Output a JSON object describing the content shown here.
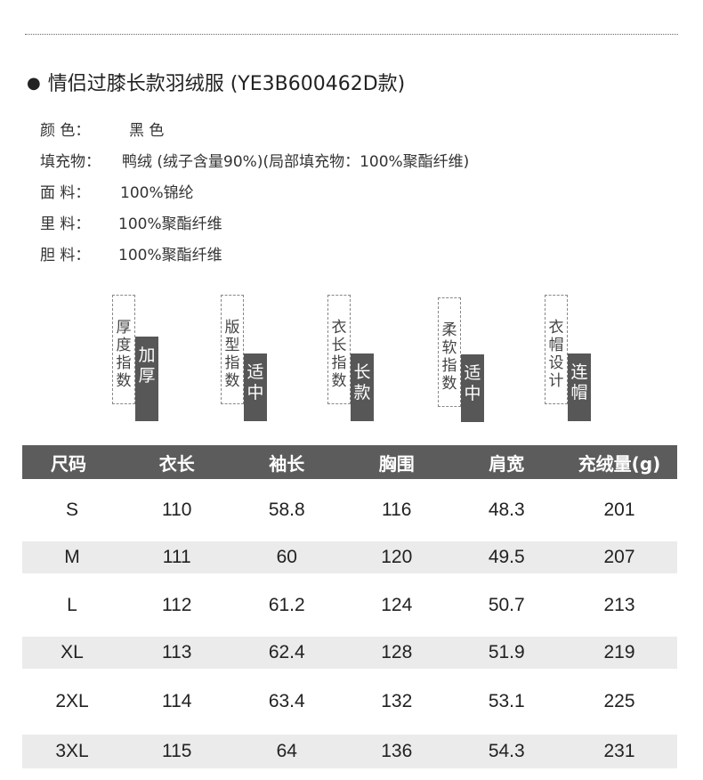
{
  "title": "情侣过膝长款羽绒服 (YE3B600462D款)",
  "specs": [
    {
      "label": "颜 色：",
      "value": "黑 色"
    },
    {
      "label": "填充物：",
      "value": "鸭绒 (绒子含量90%)(局部填充物：100%聚酯纤维)"
    },
    {
      "label": "面 料：",
      "value": "100%锦纶"
    },
    {
      "label": "里 料：",
      "value": "100%聚酯纤维"
    },
    {
      "label": "胆 料：",
      "value": "100%聚酯纤维"
    }
  ],
  "tags": [
    {
      "label": [
        "厚",
        "度",
        "指",
        "数"
      ],
      "value": [
        "加",
        "厚"
      ]
    },
    {
      "label": [
        "版",
        "型",
        "指",
        "数"
      ],
      "value": [
        "适",
        "中"
      ]
    },
    {
      "label": [
        "衣",
        "长",
        "指",
        "数"
      ],
      "value": [
        "长",
        "款"
      ]
    },
    {
      "label": [
        "柔",
        "软",
        "指",
        "数"
      ],
      "value": [
        "适",
        "中"
      ]
    },
    {
      "label": [
        "衣",
        "帽",
        "设",
        "计"
      ],
      "value": [
        "连",
        "帽"
      ]
    }
  ],
  "size_table": {
    "headers": [
      "尺码",
      "衣长",
      "袖长",
      "胸围",
      "肩宽",
      "充绒量(g)"
    ],
    "rows": [
      [
        "S",
        "110",
        "58.8",
        "116",
        "48.3",
        "201"
      ],
      [
        "M",
        "111",
        "60",
        "120",
        "49.5",
        "207"
      ],
      [
        "L",
        "112",
        "61.2",
        "124",
        "50.7",
        "213"
      ],
      [
        "XL",
        "113",
        "62.4",
        "128",
        "51.9",
        "219"
      ],
      [
        "2XL",
        "114",
        "63.4",
        "132",
        "53.1",
        "225"
      ],
      [
        "3XL",
        "115",
        "64",
        "136",
        "54.3",
        "231"
      ]
    ]
  },
  "colors": {
    "header_bg": "#5c5c5c",
    "alt_row_bg": "#ebebeb",
    "tag_fill": "#575757"
  }
}
